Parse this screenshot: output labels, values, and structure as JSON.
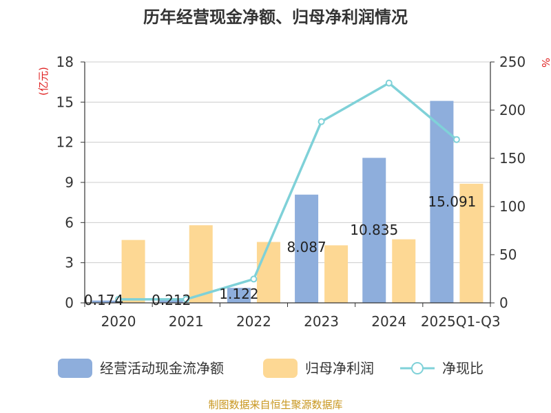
{
  "chart_data": {
    "type": "bar",
    "title": "历年经营现金净额、归母净利润情况",
    "categories": [
      "2020",
      "2021",
      "2022",
      "2023",
      "2024",
      "2025Q1-Q3"
    ],
    "left_axis_unit": "(亿元)",
    "right_axis_unit": "%",
    "ylim_left": [
      0,
      18
    ],
    "yticks_left": [
      "0",
      "3",
      "6",
      "9",
      "12",
      "15",
      "18"
    ],
    "ylim_right": [
      0,
      250
    ],
    "yticks_right": [
      "0",
      "50",
      "100",
      "150",
      "200",
      "250"
    ],
    "grid": true,
    "legend_position": "bottom",
    "series": [
      {
        "name": "经营活动现金流净额",
        "kind": "bar",
        "axis": "left",
        "color": "#8eaedc",
        "values": [
          0.174,
          0.212,
          1.122,
          8.087,
          10.835,
          15.091
        ],
        "labels": [
          "0.174",
          "0.212",
          "1.122",
          "8.087",
          "10.835",
          "15.091"
        ]
      },
      {
        "name": "归母净利润",
        "kind": "bar",
        "axis": "left",
        "color": "#fdd894",
        "values": [
          4.7,
          5.8,
          4.55,
          4.3,
          4.75,
          8.9
        ]
      },
      {
        "name": "净现比",
        "kind": "line",
        "axis": "right",
        "color": "#7fd1d8",
        "values": [
          3.7,
          3.7,
          24.7,
          188.1,
          228.1,
          169.5
        ]
      }
    ]
  },
  "source": "制图数据来自恒生聚源数据库"
}
